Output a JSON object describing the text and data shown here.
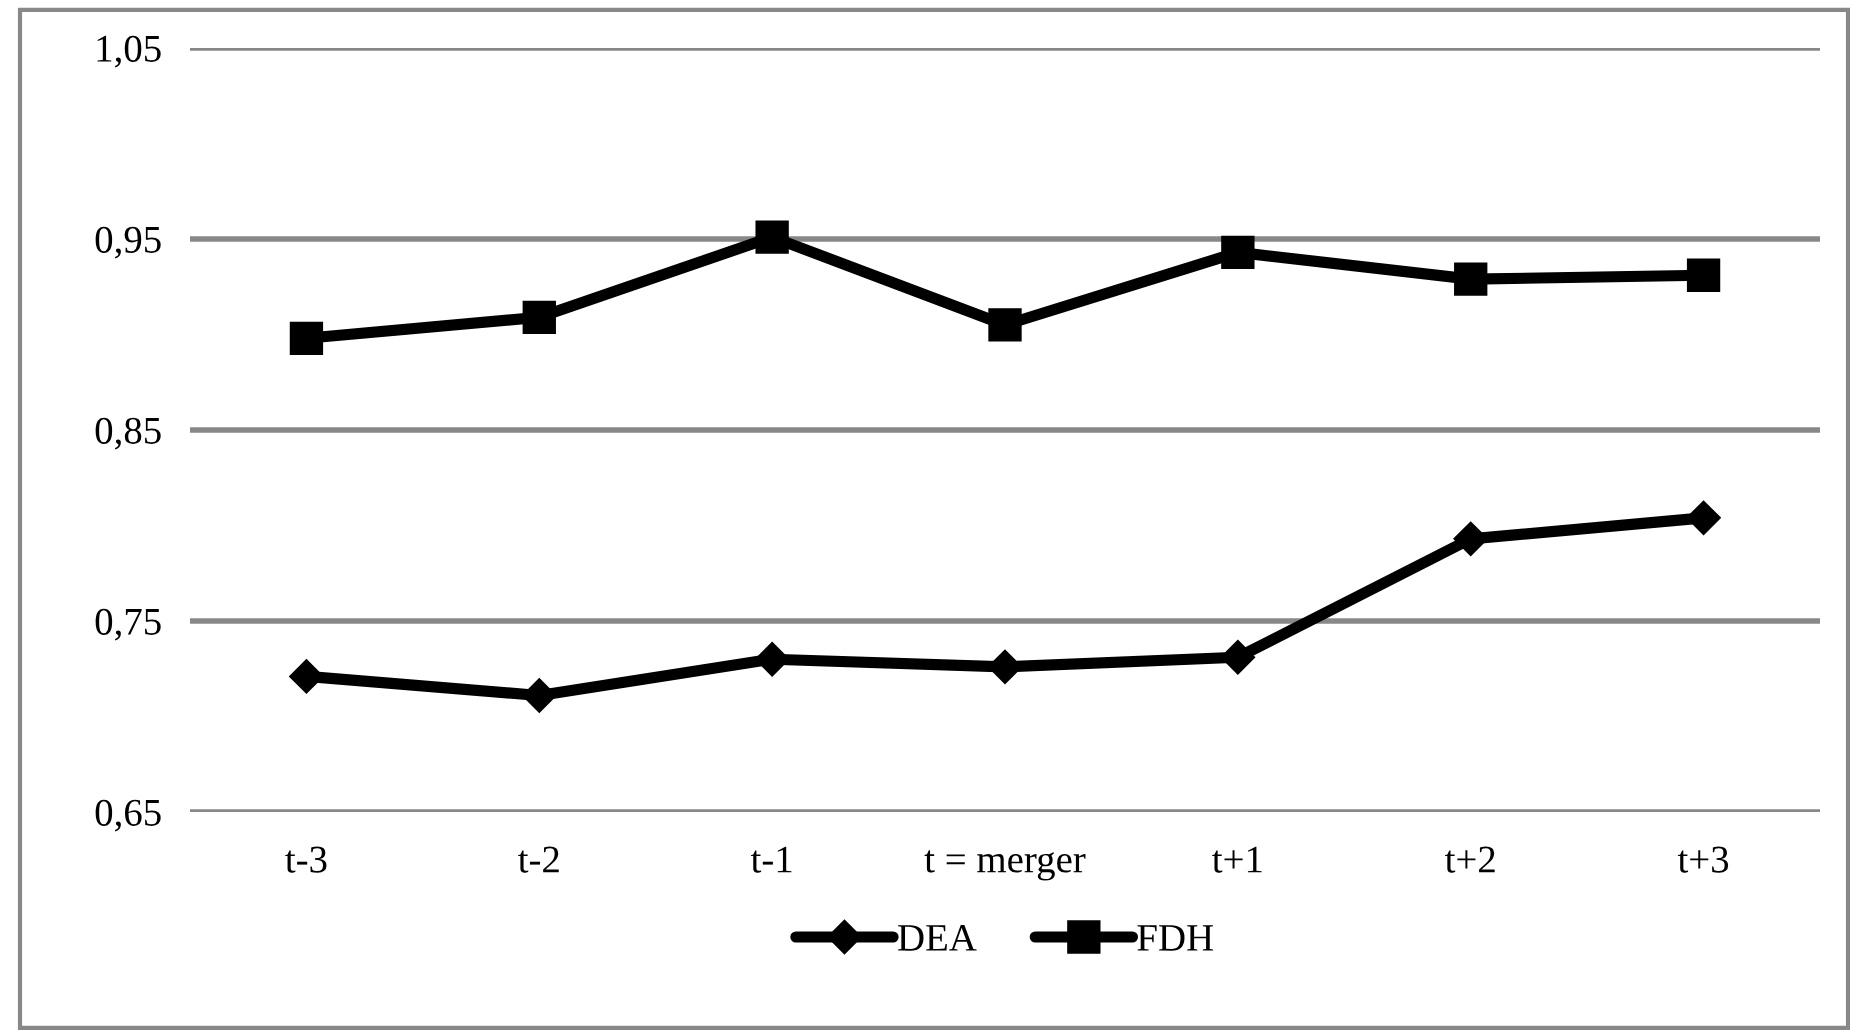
{
  "chart_data": {
    "type": "line",
    "categories": [
      "t-3",
      "t-2",
      "t-1",
      "t = merger",
      "t+1",
      "t+2",
      "t+3"
    ],
    "series": [
      {
        "name": "DEA",
        "color": "#000000",
        "marker": "diamond",
        "values": [
          0.721,
          0.711,
          0.73,
          0.726,
          0.731,
          0.793,
          0.804
        ]
      },
      {
        "name": "FDH",
        "color": "#000000",
        "marker": "square",
        "values": [
          0.898,
          0.909,
          0.951,
          0.905,
          0.943,
          0.929,
          0.931
        ]
      }
    ],
    "ylim": [
      0.65,
      1.05
    ],
    "yticks": [
      {
        "value": 0.65,
        "label": "0,65"
      },
      {
        "value": 0.75,
        "label": "0,75"
      },
      {
        "value": 0.85,
        "label": "0,85"
      },
      {
        "value": 0.95,
        "label": "0,95"
      },
      {
        "value": 1.05,
        "label": "1,05"
      }
    ],
    "grid": "y",
    "legend": "bottom",
    "line_style": "solid"
  }
}
